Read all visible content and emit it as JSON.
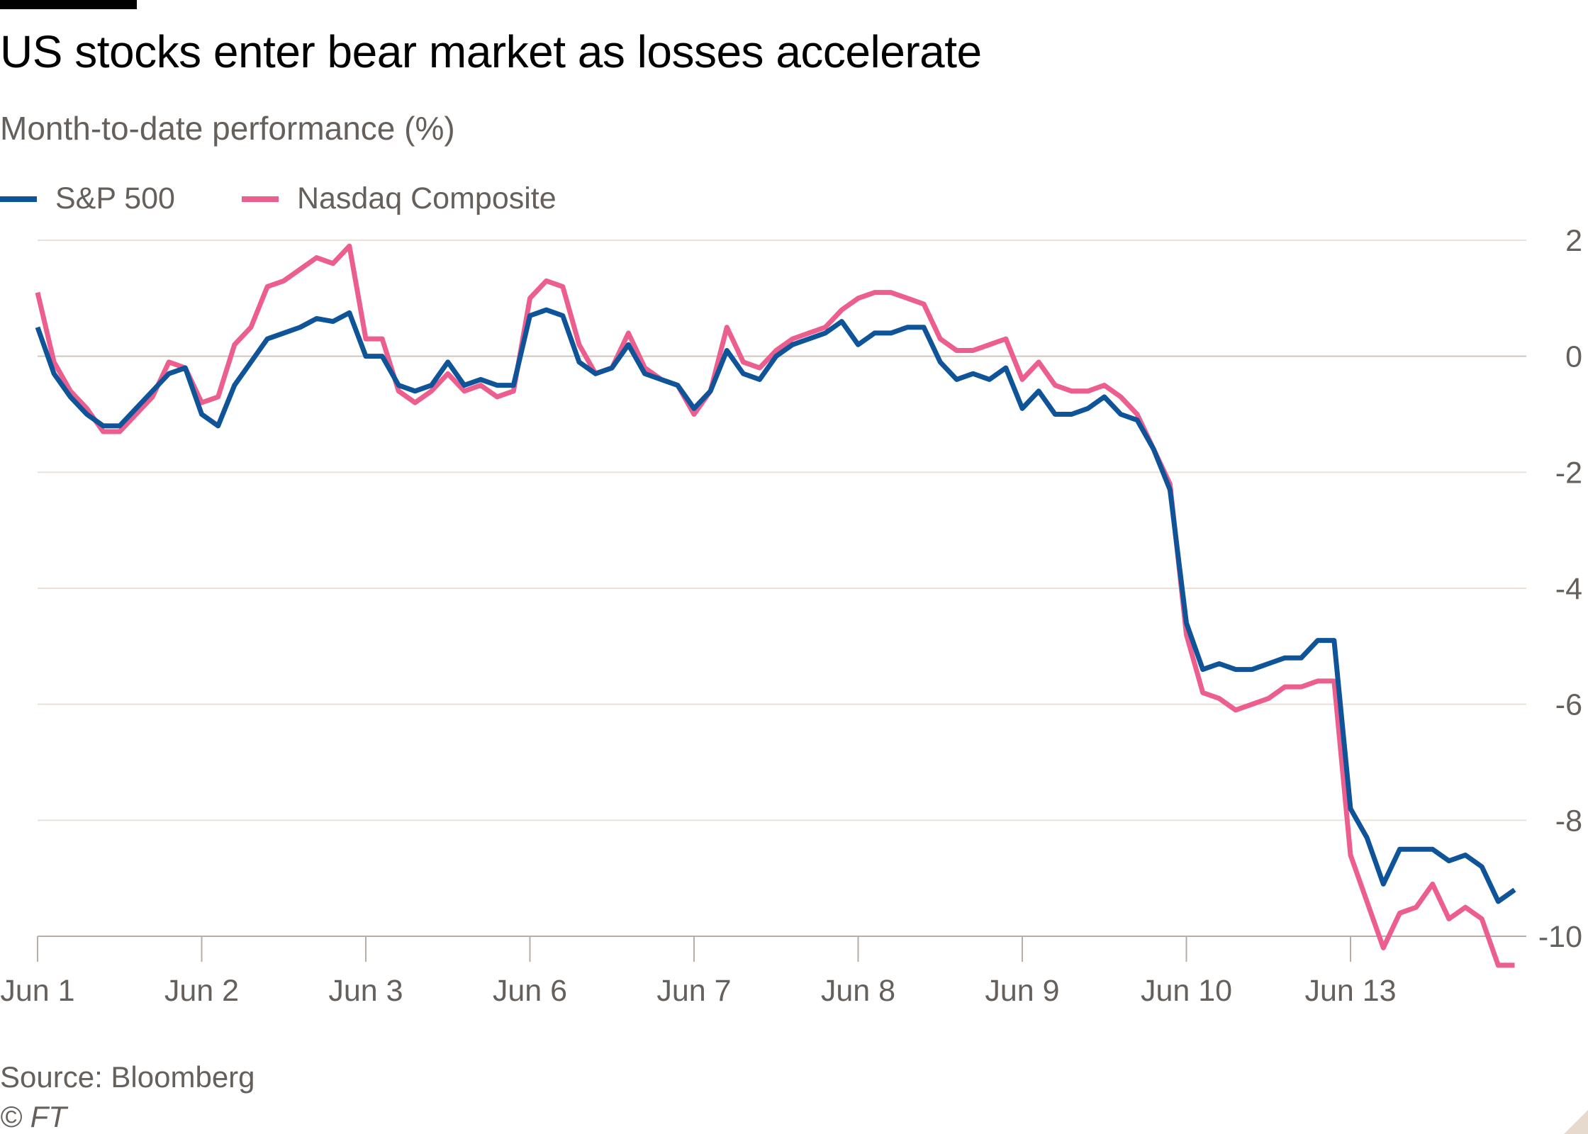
{
  "header": {
    "title": "US stocks enter bear market as losses accelerate",
    "subtitle": "Month-to-date performance (%)"
  },
  "footer": {
    "source": "Source: Bloomberg",
    "copyright": "© FT"
  },
  "chart_data": {
    "type": "line",
    "title": "US stocks enter bear market as losses accelerate",
    "subtitle": "Month-to-date performance (%)",
    "xlabel": "",
    "ylabel": "",
    "ylim": [
      -10,
      2
    ],
    "yticks": [
      2,
      0,
      -2,
      -4,
      -6,
      -8,
      -10
    ],
    "y_axis_side": "right",
    "grid": true,
    "legend": "top-left",
    "categories": [
      "Jun 1",
      "Jun 2",
      "Jun 3",
      "Jun 6",
      "Jun 7",
      "Jun 8",
      "Jun 9",
      "Jun 10",
      "Jun 13"
    ],
    "series": [
      {
        "name": "S&P 500",
        "color": "#0f5499",
        "values_by_day": [
          [
            0.5,
            -0.3,
            -0.7,
            -1.0,
            -1.2,
            -1.2,
            -0.9,
            -0.6,
            -0.3,
            -0.2
          ],
          [
            -1.0,
            -1.2,
            -0.5,
            -0.1,
            0.3,
            0.4,
            0.5,
            0.65,
            0.6,
            0.75
          ],
          [
            0.0,
            0.0,
            -0.5,
            -0.6,
            -0.5,
            -0.1,
            -0.5,
            -0.4,
            -0.5,
            -0.5
          ],
          [
            0.7,
            0.8,
            0.7,
            -0.1,
            -0.3,
            -0.2,
            0.2,
            -0.3,
            -0.4,
            -0.5
          ],
          [
            -0.9,
            -0.6,
            0.1,
            -0.3,
            -0.4,
            0.0,
            0.2,
            0.3,
            0.4,
            0.6
          ],
          [
            0.2,
            0.4,
            0.4,
            0.5,
            0.5,
            -0.1,
            -0.4,
            -0.3,
            -0.4,
            -0.2
          ],
          [
            -0.9,
            -0.6,
            -1.0,
            -1.0,
            -0.9,
            -0.7,
            -1.0,
            -1.1,
            -1.6,
            -2.3
          ],
          [
            -4.6,
            -5.4,
            -5.3,
            -5.4,
            -5.4,
            -5.3,
            -5.2,
            -5.2,
            -4.9,
            -4.9
          ],
          [
            -7.8,
            -8.3,
            -9.1,
            -8.5,
            -8.5,
            -8.5,
            -8.7,
            -8.6,
            -8.8,
            -9.4,
            -9.2
          ]
        ]
      },
      {
        "name": "Nasdaq Composite",
        "color": "#eb5e8d",
        "values_by_day": [
          [
            1.1,
            -0.1,
            -0.6,
            -0.9,
            -1.3,
            -1.3,
            -1.0,
            -0.7,
            -0.1,
            -0.2
          ],
          [
            -0.8,
            -0.7,
            0.2,
            0.5,
            1.2,
            1.3,
            1.5,
            1.7,
            1.6,
            1.9
          ],
          [
            0.3,
            0.3,
            -0.6,
            -0.8,
            -0.6,
            -0.3,
            -0.6,
            -0.5,
            -0.7,
            -0.6
          ],
          [
            1.0,
            1.3,
            1.2,
            0.2,
            -0.3,
            -0.2,
            0.4,
            -0.2,
            -0.4,
            -0.5
          ],
          [
            -1.0,
            -0.6,
            0.5,
            -0.1,
            -0.2,
            0.1,
            0.3,
            0.4,
            0.5,
            0.8
          ],
          [
            1.0,
            1.1,
            1.1,
            1.0,
            0.9,
            0.3,
            0.1,
            0.1,
            0.2,
            0.3
          ],
          [
            -0.4,
            -0.1,
            -0.5,
            -0.6,
            -0.6,
            -0.5,
            -0.7,
            -1.0,
            -1.6,
            -2.2
          ],
          [
            -4.8,
            -5.8,
            -5.9,
            -6.1,
            -6.0,
            -5.9,
            -5.7,
            -5.7,
            -5.6,
            -5.6
          ],
          [
            -8.6,
            -9.4,
            -10.2,
            -9.6,
            -9.5,
            -9.1,
            -9.7,
            -9.5,
            -9.7,
            -10.5,
            -10.5
          ]
        ]
      }
    ]
  }
}
